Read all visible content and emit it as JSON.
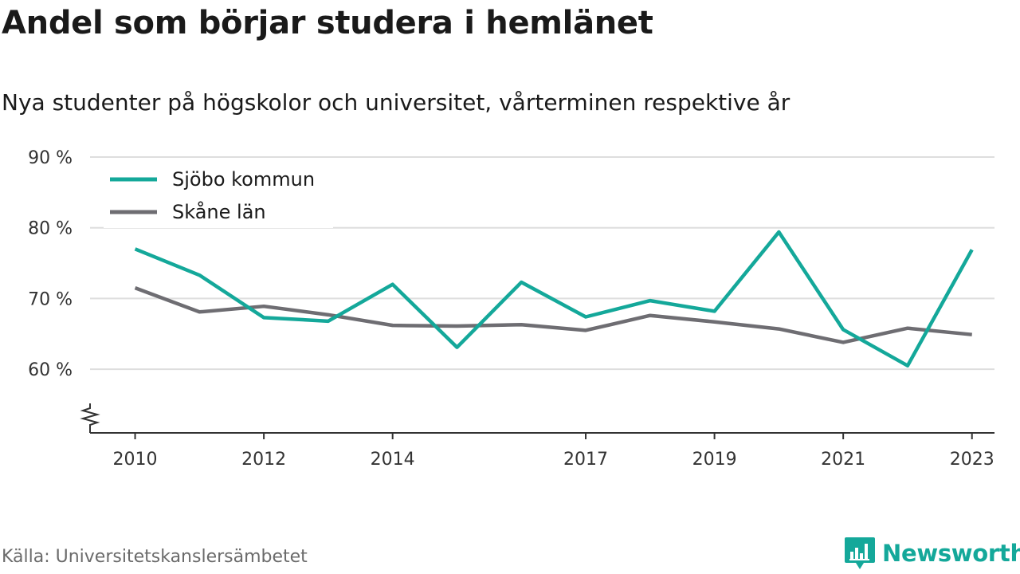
{
  "title": "Andel som börjar studera i hemlänet",
  "subtitle": "Nya studenter på högskolor och universitet, vårterminen respektive år",
  "source": "Källa: Universitetskanslersämbetet",
  "brand": {
    "name": "Newsworthy",
    "color": "#14a89a",
    "icon": "bar-chart-icon"
  },
  "chart_data": {
    "type": "line",
    "title": "Andel som börjar studera i hemlänet",
    "subtitle": "Nya studenter på högskolor och universitet, vårterminen respektive år",
    "x": [
      2010,
      2011,
      2012,
      2013,
      2014,
      2015,
      2016,
      2017,
      2018,
      2019,
      2020,
      2021,
      2022,
      2023
    ],
    "x_tick_labels": [
      "2010",
      "2012",
      "2014",
      "2017",
      "2019",
      "2021",
      "2023"
    ],
    "y_tick_labels": [
      "60 %",
      "70 %",
      "80 %",
      "90 %"
    ],
    "y_ticks": [
      60,
      70,
      80,
      90
    ],
    "ylim": [
      51,
      90
    ],
    "xlim": [
      2009.3,
      2023.35
    ],
    "y_axis_break": true,
    "grid": "horizontal",
    "legend_position": "top-left",
    "series": [
      {
        "name": "Sjöbo kommun",
        "color": "#14a89a",
        "values": [
          77,
          73.3,
          67.3,
          66.8,
          72,
          63.1,
          72.3,
          67.4,
          69.7,
          68.2,
          79.4,
          65.6,
          60.5,
          76.9
        ]
      },
      {
        "name": "Skåne län",
        "color": "#6e6d72",
        "values": [
          71.5,
          68.1,
          68.9,
          67.7,
          66.2,
          66.1,
          66.3,
          65.5,
          67.6,
          66.7,
          65.7,
          63.8,
          65.8,
          64.9
        ]
      }
    ]
  }
}
